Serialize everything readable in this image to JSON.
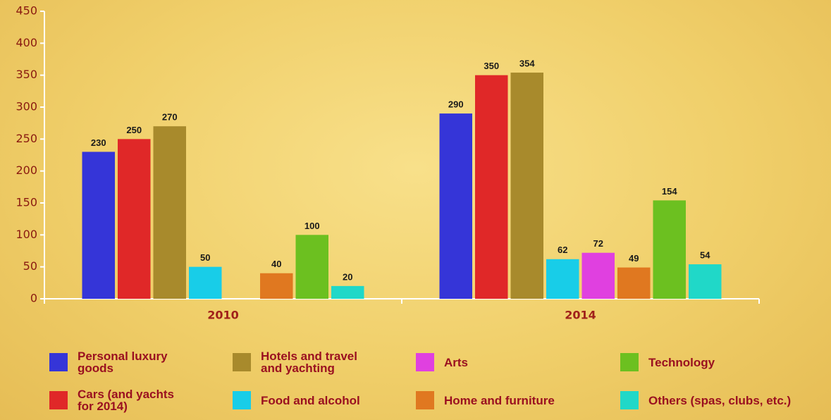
{
  "chart_data": {
    "type": "bar",
    "categories": [
      "2010",
      "2014"
    ],
    "series": [
      {
        "name": "Personal luxury goods",
        "color": "#3535d8",
        "values": [
          230,
          290
        ]
      },
      {
        "name": "Cars (and yachts for 2014)",
        "color": "#e02828",
        "values": [
          250,
          350
        ]
      },
      {
        "name": "Hotels and travel and yachting",
        "color": "#a88a2c",
        "values": [
          270,
          354
        ]
      },
      {
        "name": "Food and alcohol",
        "color": "#18cde8",
        "values": [
          50,
          62
        ]
      },
      {
        "name": "Arts",
        "color": "#e040e0",
        "values": [
          null,
          72
        ]
      },
      {
        "name": "Home and furniture",
        "color": "#e07820",
        "values": [
          40,
          49
        ]
      },
      {
        "name": "Technology",
        "color": "#6cc020",
        "values": [
          100,
          154
        ]
      },
      {
        "name": "Others (spas, clubs, etc.)",
        "color": "#20d8c8",
        "values": [
          20,
          54
        ]
      }
    ],
    "ylim": [
      0,
      450
    ],
    "yticks": [
      0,
      50,
      100,
      150,
      200,
      250,
      300,
      350,
      400,
      450
    ]
  }
}
